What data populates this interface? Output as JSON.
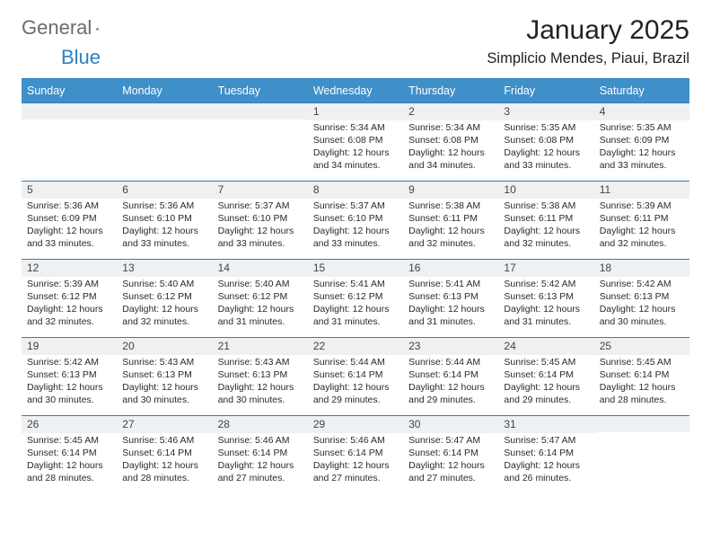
{
  "logo": {
    "text_gray": "General",
    "text_blue": "Blue",
    "icon_color": "#2d7fc1"
  },
  "title": "January 2025",
  "location": "Simplicio Mendes, Piaui, Brazil",
  "colors": {
    "header_bg": "#3f8fc9",
    "border": "#2d7fc1",
    "daynum_bg": "#eef0f2",
    "text": "#2a2a2a",
    "background": "#ffffff"
  },
  "weekdays": [
    "Sunday",
    "Monday",
    "Tuesday",
    "Wednesday",
    "Thursday",
    "Friday",
    "Saturday"
  ],
  "weeks": [
    [
      {
        "day": "",
        "sunrise": "",
        "sunset": "",
        "daylight": ""
      },
      {
        "day": "",
        "sunrise": "",
        "sunset": "",
        "daylight": ""
      },
      {
        "day": "",
        "sunrise": "",
        "sunset": "",
        "daylight": ""
      },
      {
        "day": "1",
        "sunrise": "Sunrise: 5:34 AM",
        "sunset": "Sunset: 6:08 PM",
        "daylight": "Daylight: 12 hours and 34 minutes."
      },
      {
        "day": "2",
        "sunrise": "Sunrise: 5:34 AM",
        "sunset": "Sunset: 6:08 PM",
        "daylight": "Daylight: 12 hours and 34 minutes."
      },
      {
        "day": "3",
        "sunrise": "Sunrise: 5:35 AM",
        "sunset": "Sunset: 6:08 PM",
        "daylight": "Daylight: 12 hours and 33 minutes."
      },
      {
        "day": "4",
        "sunrise": "Sunrise: 5:35 AM",
        "sunset": "Sunset: 6:09 PM",
        "daylight": "Daylight: 12 hours and 33 minutes."
      }
    ],
    [
      {
        "day": "5",
        "sunrise": "Sunrise: 5:36 AM",
        "sunset": "Sunset: 6:09 PM",
        "daylight": "Daylight: 12 hours and 33 minutes."
      },
      {
        "day": "6",
        "sunrise": "Sunrise: 5:36 AM",
        "sunset": "Sunset: 6:10 PM",
        "daylight": "Daylight: 12 hours and 33 minutes."
      },
      {
        "day": "7",
        "sunrise": "Sunrise: 5:37 AM",
        "sunset": "Sunset: 6:10 PM",
        "daylight": "Daylight: 12 hours and 33 minutes."
      },
      {
        "day": "8",
        "sunrise": "Sunrise: 5:37 AM",
        "sunset": "Sunset: 6:10 PM",
        "daylight": "Daylight: 12 hours and 33 minutes."
      },
      {
        "day": "9",
        "sunrise": "Sunrise: 5:38 AM",
        "sunset": "Sunset: 6:11 PM",
        "daylight": "Daylight: 12 hours and 32 minutes."
      },
      {
        "day": "10",
        "sunrise": "Sunrise: 5:38 AM",
        "sunset": "Sunset: 6:11 PM",
        "daylight": "Daylight: 12 hours and 32 minutes."
      },
      {
        "day": "11",
        "sunrise": "Sunrise: 5:39 AM",
        "sunset": "Sunset: 6:11 PM",
        "daylight": "Daylight: 12 hours and 32 minutes."
      }
    ],
    [
      {
        "day": "12",
        "sunrise": "Sunrise: 5:39 AM",
        "sunset": "Sunset: 6:12 PM",
        "daylight": "Daylight: 12 hours and 32 minutes."
      },
      {
        "day": "13",
        "sunrise": "Sunrise: 5:40 AM",
        "sunset": "Sunset: 6:12 PM",
        "daylight": "Daylight: 12 hours and 32 minutes."
      },
      {
        "day": "14",
        "sunrise": "Sunrise: 5:40 AM",
        "sunset": "Sunset: 6:12 PM",
        "daylight": "Daylight: 12 hours and 31 minutes."
      },
      {
        "day": "15",
        "sunrise": "Sunrise: 5:41 AM",
        "sunset": "Sunset: 6:12 PM",
        "daylight": "Daylight: 12 hours and 31 minutes."
      },
      {
        "day": "16",
        "sunrise": "Sunrise: 5:41 AM",
        "sunset": "Sunset: 6:13 PM",
        "daylight": "Daylight: 12 hours and 31 minutes."
      },
      {
        "day": "17",
        "sunrise": "Sunrise: 5:42 AM",
        "sunset": "Sunset: 6:13 PM",
        "daylight": "Daylight: 12 hours and 31 minutes."
      },
      {
        "day": "18",
        "sunrise": "Sunrise: 5:42 AM",
        "sunset": "Sunset: 6:13 PM",
        "daylight": "Daylight: 12 hours and 30 minutes."
      }
    ],
    [
      {
        "day": "19",
        "sunrise": "Sunrise: 5:42 AM",
        "sunset": "Sunset: 6:13 PM",
        "daylight": "Daylight: 12 hours and 30 minutes."
      },
      {
        "day": "20",
        "sunrise": "Sunrise: 5:43 AM",
        "sunset": "Sunset: 6:13 PM",
        "daylight": "Daylight: 12 hours and 30 minutes."
      },
      {
        "day": "21",
        "sunrise": "Sunrise: 5:43 AM",
        "sunset": "Sunset: 6:13 PM",
        "daylight": "Daylight: 12 hours and 30 minutes."
      },
      {
        "day": "22",
        "sunrise": "Sunrise: 5:44 AM",
        "sunset": "Sunset: 6:14 PM",
        "daylight": "Daylight: 12 hours and 29 minutes."
      },
      {
        "day": "23",
        "sunrise": "Sunrise: 5:44 AM",
        "sunset": "Sunset: 6:14 PM",
        "daylight": "Daylight: 12 hours and 29 minutes."
      },
      {
        "day": "24",
        "sunrise": "Sunrise: 5:45 AM",
        "sunset": "Sunset: 6:14 PM",
        "daylight": "Daylight: 12 hours and 29 minutes."
      },
      {
        "day": "25",
        "sunrise": "Sunrise: 5:45 AM",
        "sunset": "Sunset: 6:14 PM",
        "daylight": "Daylight: 12 hours and 28 minutes."
      }
    ],
    [
      {
        "day": "26",
        "sunrise": "Sunrise: 5:45 AM",
        "sunset": "Sunset: 6:14 PM",
        "daylight": "Daylight: 12 hours and 28 minutes."
      },
      {
        "day": "27",
        "sunrise": "Sunrise: 5:46 AM",
        "sunset": "Sunset: 6:14 PM",
        "daylight": "Daylight: 12 hours and 28 minutes."
      },
      {
        "day": "28",
        "sunrise": "Sunrise: 5:46 AM",
        "sunset": "Sunset: 6:14 PM",
        "daylight": "Daylight: 12 hours and 27 minutes."
      },
      {
        "day": "29",
        "sunrise": "Sunrise: 5:46 AM",
        "sunset": "Sunset: 6:14 PM",
        "daylight": "Daylight: 12 hours and 27 minutes."
      },
      {
        "day": "30",
        "sunrise": "Sunrise: 5:47 AM",
        "sunset": "Sunset: 6:14 PM",
        "daylight": "Daylight: 12 hours and 27 minutes."
      },
      {
        "day": "31",
        "sunrise": "Sunrise: 5:47 AM",
        "sunset": "Sunset: 6:14 PM",
        "daylight": "Daylight: 12 hours and 26 minutes."
      },
      {
        "day": "",
        "sunrise": "",
        "sunset": "",
        "daylight": ""
      }
    ]
  ]
}
